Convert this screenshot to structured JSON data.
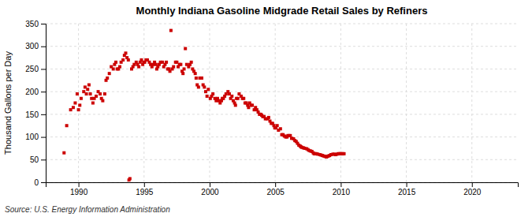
{
  "chart_data": {
    "type": "scatter",
    "title": "Monthly Indiana Gasoline Midgrade Retail Sales by Refiners",
    "y_label": "Thousand Gallons per Day",
    "annotations": [
      "Source: U.S. Energy Information Administration"
    ],
    "color": "#cc0000",
    "marker": "square",
    "grid": true,
    "xlim": [
      1987.5,
      2023.5
    ],
    "ylim": [
      0,
      350
    ],
    "xticks": [
      1990,
      1995,
      2000,
      2005,
      2010,
      2015,
      2020
    ],
    "yticks": [
      0,
      50,
      100,
      150,
      200,
      250,
      300,
      350
    ],
    "x": [
      1988.9,
      1989.1,
      1989.4,
      1989.6,
      1989.75,
      1989.9,
      1990.0,
      1990.1,
      1990.2,
      1990.4,
      1990.5,
      1990.6,
      1990.7,
      1990.8,
      1990.9,
      1991.0,
      1991.1,
      1991.2,
      1991.35,
      1991.5,
      1991.65,
      1991.75,
      1991.85,
      1992.0,
      1992.1,
      1992.2,
      1992.35,
      1992.5,
      1992.65,
      1992.75,
      1992.85,
      1992.95,
      1993.05,
      1993.15,
      1993.25,
      1993.4,
      1993.5,
      1993.6,
      1993.7,
      1993.8,
      1993.85,
      1993.92,
      1994.05,
      1994.15,
      1994.25,
      1994.4,
      1994.5,
      1994.6,
      1994.7,
      1994.8,
      1994.9,
      1994.97,
      1995.05,
      1995.15,
      1995.25,
      1995.4,
      1995.5,
      1995.6,
      1995.7,
      1995.8,
      1995.9,
      1995.97,
      1996.05,
      1996.15,
      1996.25,
      1996.4,
      1996.5,
      1996.6,
      1996.7,
      1996.8,
      1996.9,
      1996.97,
      1997.05,
      1997.15,
      1997.25,
      1997.4,
      1997.5,
      1997.6,
      1997.7,
      1997.8,
      1997.9,
      1997.97,
      1998.05,
      1998.15,
      1998.25,
      1998.4,
      1998.5,
      1998.6,
      1998.7,
      1998.8,
      1998.9,
      1998.97,
      1999.05,
      1999.15,
      1999.25,
      1999.4,
      1999.5,
      1999.6,
      1999.7,
      1999.8,
      1999.9,
      2000.05,
      2000.15,
      2000.25,
      2000.4,
      2000.5,
      2000.6,
      2000.7,
      2000.8,
      2000.9,
      2000.97,
      2001.05,
      2001.15,
      2001.25,
      2001.4,
      2001.5,
      2001.6,
      2001.7,
      2001.8,
      2001.9,
      2001.97,
      2002.05,
      2002.15,
      2002.25,
      2002.4,
      2002.5,
      2002.6,
      2002.7,
      2002.8,
      2002.9,
      2002.97,
      2003.05,
      2003.15,
      2003.25,
      2003.4,
      2003.5,
      2003.6,
      2003.7,
      2003.8,
      2003.9,
      2003.97,
      2004.05,
      2004.15,
      2004.25,
      2004.4,
      2004.5,
      2004.6,
      2004.7,
      2004.8,
      2004.9,
      2004.97,
      2005.05,
      2005.15,
      2005.25,
      2005.4,
      2005.5,
      2005.6,
      2005.7,
      2005.8,
      2005.9,
      2005.97,
      2006.05,
      2006.15,
      2006.25,
      2006.4,
      2006.5,
      2006.6,
      2006.7,
      2006.8,
      2006.9,
      2006.97,
      2007.05,
      2007.15,
      2007.25,
      2007.4,
      2007.5,
      2007.6,
      2007.7,
      2007.8,
      2007.9,
      2007.97,
      2008.05,
      2008.15,
      2008.25,
      2008.4,
      2008.5,
      2008.6,
      2008.7,
      2008.8,
      2008.9,
      2008.97,
      2009.05,
      2009.15,
      2009.25,
      2009.4,
      2009.5,
      2009.6,
      2009.7,
      2009.8,
      2009.9,
      2009.97,
      2010.05,
      2010.15,
      2010.25
    ],
    "values": [
      65,
      125,
      160,
      165,
      175,
      195,
      160,
      170,
      185,
      200,
      210,
      195,
      205,
      215,
      195,
      185,
      175,
      185,
      190,
      200,
      195,
      185,
      180,
      195,
      225,
      230,
      240,
      255,
      250,
      260,
      265,
      250,
      250,
      255,
      265,
      270,
      280,
      285,
      275,
      270,
      5,
      8,
      250,
      255,
      260,
      265,
      260,
      255,
      265,
      270,
      260,
      265,
      265,
      270,
      270,
      265,
      260,
      255,
      260,
      265,
      260,
      250,
      255,
      260,
      265,
      265,
      255,
      260,
      265,
      250,
      250,
      245,
      335,
      250,
      255,
      265,
      265,
      255,
      260,
      260,
      245,
      240,
      250,
      295,
      260,
      255,
      260,
      265,
      250,
      245,
      240,
      230,
      215,
      210,
      230,
      230,
      215,
      210,
      200,
      190,
      205,
      185,
      190,
      195,
      185,
      180,
      185,
      180,
      175,
      180,
      185,
      185,
      190,
      195,
      200,
      195,
      185,
      190,
      180,
      175,
      170,
      185,
      185,
      195,
      190,
      185,
      185,
      175,
      175,
      170,
      165,
      175,
      170,
      170,
      160,
      165,
      160,
      155,
      150,
      150,
      148,
      145,
      145,
      140,
      140,
      143,
      135,
      130,
      130,
      125,
      120,
      120,
      125,
      115,
      118,
      105,
      105,
      102,
      100,
      100,
      103,
      103,
      103,
      97,
      96,
      92,
      90,
      86,
      82,
      80,
      78,
      77,
      76,
      75,
      74,
      72,
      70,
      69,
      68,
      65,
      63,
      63,
      63,
      62,
      61,
      60,
      59,
      58,
      57,
      56,
      57,
      58,
      59,
      61,
      62,
      62,
      61,
      62,
      63,
      63,
      63,
      63,
      63,
      63
    ]
  }
}
